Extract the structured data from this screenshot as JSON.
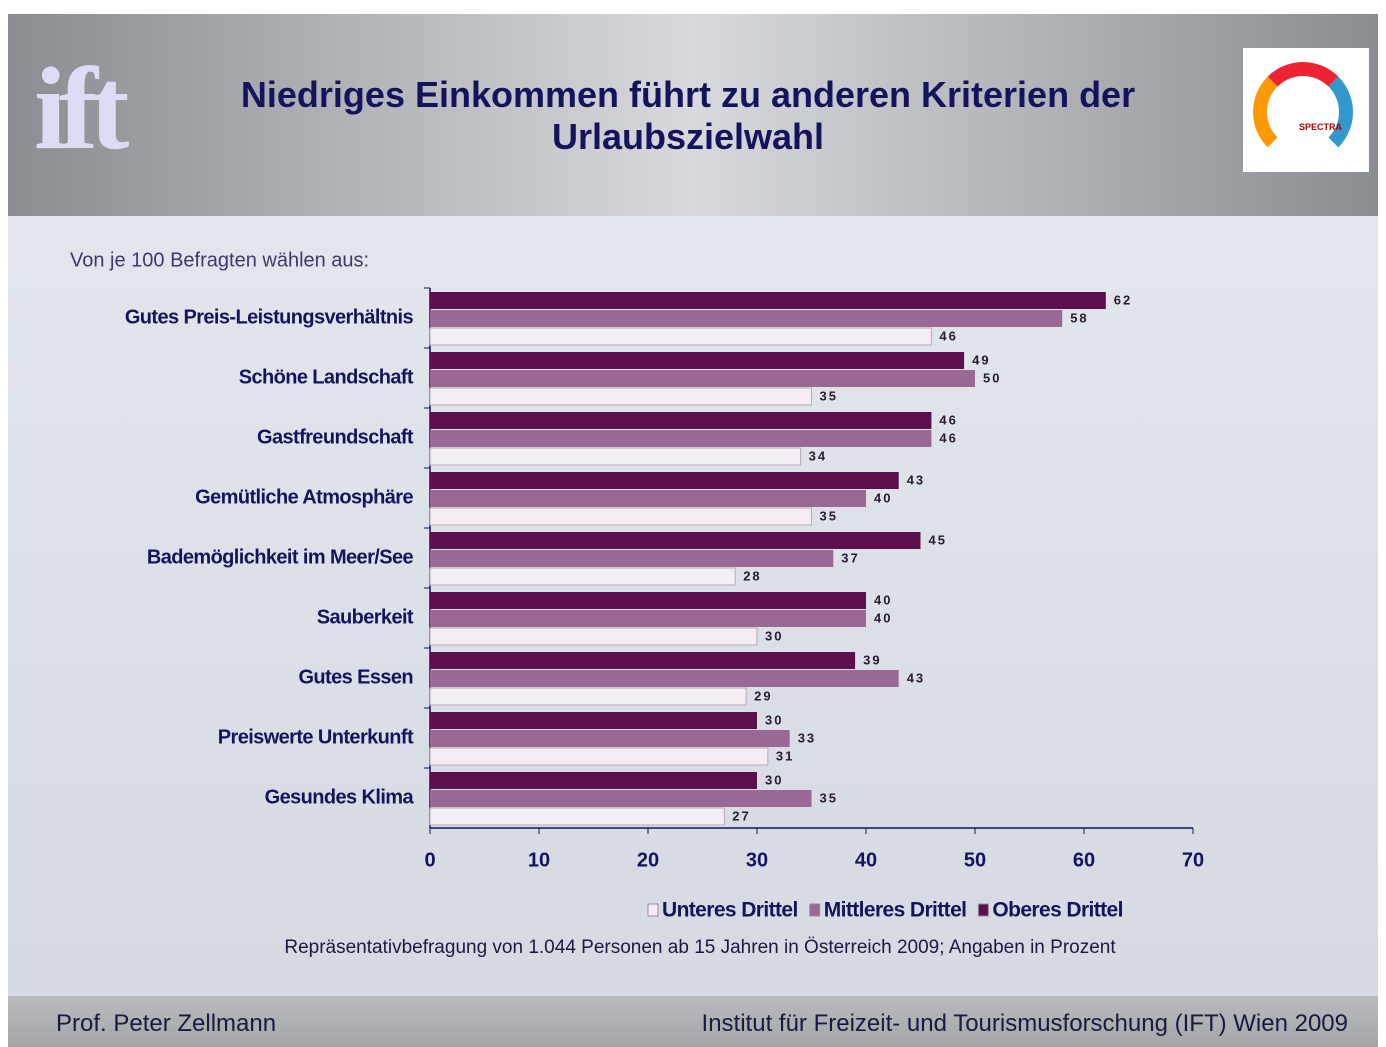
{
  "slide": {
    "title": "Niedriges Einkommen führt zu anderen Kriterien der Urlaubszielwahl",
    "logo_left": "ift",
    "logo_right": "SPECTRA",
    "footer_left": "Prof. Peter Zellmann",
    "footer_right": "Institut für Freizeit- und Tourismusforschung (IFT) Wien  2009"
  },
  "chart_data": {
    "type": "hbar",
    "subtitle": "Von je 100 Befragten wählen aus:",
    "note": "Repräsentativbefragung von 1.044 Personen ab 15 Jahren in Österreich 2009; Angaben in Prozent",
    "categories": [
      "Gutes Preis-Leistungsverhältnis",
      "Schöne Landschaft",
      "Gastfreundschaft",
      "Gemütliche Atmosphäre",
      "Bademöglichkeit im Meer/See",
      "Sauberkeit",
      "Gutes Essen",
      "Preiswerte Unterkunft",
      "Gesundes Klima"
    ],
    "series": [
      {
        "name": "Unteres Drittel",
        "color": "#f4eef4",
        "values": [
          46,
          35,
          34,
          35,
          28,
          30,
          29,
          31,
          27
        ]
      },
      {
        "name": "Mittleres Drittel",
        "color": "#9a6894",
        "values": [
          58,
          50,
          46,
          40,
          37,
          40,
          43,
          33,
          35
        ]
      },
      {
        "name": "Oberes Drittel",
        "color": "#5c0f4d",
        "values": [
          62,
          49,
          46,
          43,
          45,
          40,
          39,
          30,
          30
        ]
      }
    ],
    "xlim": [
      0,
      70
    ],
    "xticks": [
      0,
      10,
      20,
      30,
      40,
      50,
      60,
      70
    ],
    "grid": false,
    "legend": "bottom"
  }
}
